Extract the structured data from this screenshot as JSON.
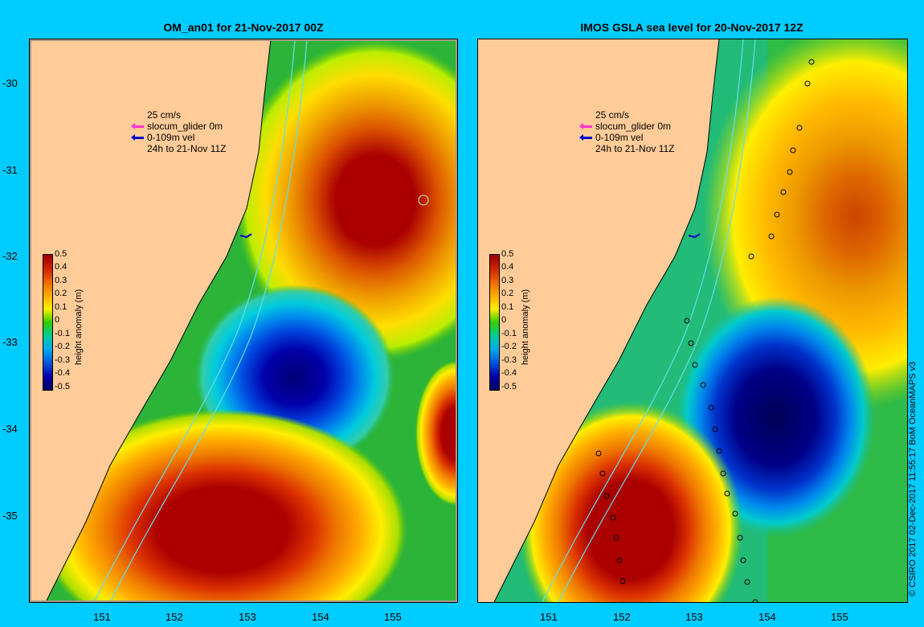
{
  "panels": [
    {
      "title": "OM_an01 for 21-Nov-2017 00Z",
      "x_ticks": [
        "151",
        "152",
        "153",
        "154",
        "155"
      ],
      "y_ticks": [
        "-30",
        "-31",
        "-32",
        "-33",
        "-34",
        "-35"
      ],
      "legend": {
        "scale": "25 cm/s",
        "item1": "slocum_glider 0m",
        "item2": "0-109m vel",
        "item3": "24h to 21-Nov 11Z",
        "item1_color": "#ff33cc",
        "item2_color": "#0000cc"
      },
      "colorbar": {
        "title": "height anomaly (m)",
        "labels": [
          "0.5",
          "0.4",
          "0.3",
          "0.2",
          "0.1",
          "0",
          "-0.1",
          "-0.2",
          "-0.3",
          "-0.4",
          "-0.5"
        ]
      }
    },
    {
      "title": "IMOS GSLA sea level  for 20-Nov-2017 12Z",
      "x_ticks": [
        "151",
        "152",
        "153",
        "154",
        "155"
      ],
      "legend": {
        "scale": "25 cm/s",
        "item1": "slocum_glider 0m",
        "item2": "0-109m vel",
        "item3": "24h to 21-Nov 11Z",
        "item1_color": "#ff33cc",
        "item2_color": "#0000cc"
      },
      "colorbar": {
        "title": "height anomaly (m)",
        "labels": [
          "0.5",
          "0.4",
          "0.3",
          "0.2",
          "0.1",
          "0",
          "-0.1",
          "-0.2",
          "-0.3",
          "-0.4",
          "-0.5"
        ]
      }
    }
  ],
  "credit": "© CSIRO 2017   02-Dec-2017 11:55:17 BoM OceanMAPS v3",
  "colors": {
    "land": "#ffcc99",
    "background": "#00ccff"
  }
}
